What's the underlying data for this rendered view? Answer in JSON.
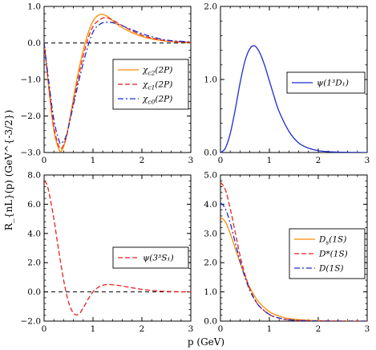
{
  "figure": {
    "ylabel": "R_{nL}(p) (GeV^{-3/2})",
    "xlabel": "p (GeV)"
  },
  "chart_data": [
    {
      "type": "line",
      "panel": "top-left",
      "xlim": [
        0,
        3
      ],
      "ylim": [
        -3.0,
        1.0
      ],
      "xticks": [
        0,
        1,
        2,
        3
      ],
      "xtick_labels": [
        "0",
        "1",
        "2",
        "3"
      ],
      "yticks": [
        -3.0,
        -2.0,
        -1.0,
        0.0,
        1.0
      ],
      "ytick_labels": [
        "−3.0",
        "−2.0",
        "−1.0",
        "0.0",
        "1.0"
      ],
      "zero_line": true,
      "legend_position": "center-right",
      "series": [
        {
          "name": "χc2(2P)",
          "name_main": "χ",
          "name_sub": "c2",
          "name_arg": "(2P)",
          "color": "#ff8c00",
          "dash": "solid",
          "x": [
            0,
            0.1,
            0.2,
            0.3,
            0.36,
            0.45,
            0.55,
            0.7,
            0.85,
            1.0,
            1.15,
            1.3,
            1.5,
            1.8,
            2.1,
            2.5,
            3.0
          ],
          "y": [
            0,
            -1.3,
            -2.4,
            -2.9,
            -2.95,
            -2.6,
            -1.9,
            -0.8,
            0.05,
            0.6,
            0.78,
            0.72,
            0.5,
            0.28,
            0.14,
            0.05,
            0.01
          ]
        },
        {
          "name": "χc1(2P)",
          "name_main": "χ",
          "name_sub": "c1",
          "name_arg": "(2P)",
          "color": "#e8211e",
          "dash": "6,3",
          "x": [
            0,
            0.1,
            0.2,
            0.3,
            0.36,
            0.45,
            0.55,
            0.7,
            0.85,
            1.0,
            1.2,
            1.35,
            1.5,
            1.8,
            2.1,
            2.5,
            3.0
          ],
          "y": [
            0,
            -1.2,
            -2.3,
            -2.82,
            -2.88,
            -2.6,
            -1.95,
            -0.95,
            -0.1,
            0.45,
            0.68,
            0.66,
            0.55,
            0.33,
            0.17,
            0.06,
            0.02
          ]
        },
        {
          "name": "χc0(2P)",
          "name_main": "χ",
          "name_sub": "c0",
          "name_arg": "(2P)",
          "color": "#1f2ccc",
          "dash": "7,3,2,3",
          "x": [
            0,
            0.1,
            0.2,
            0.3,
            0.35,
            0.45,
            0.55,
            0.7,
            0.85,
            1.0,
            1.15,
            1.3,
            1.5,
            1.8,
            2.1,
            2.5,
            3.0
          ],
          "y": [
            0,
            -1.1,
            -2.1,
            -2.65,
            -2.75,
            -2.55,
            -2.0,
            -1.1,
            -0.3,
            0.3,
            0.52,
            0.57,
            0.52,
            0.36,
            0.21,
            0.08,
            0.03
          ]
        }
      ]
    },
    {
      "type": "line",
      "panel": "top-right",
      "xlim": [
        0,
        3
      ],
      "ylim": [
        0,
        2.0
      ],
      "xticks": [
        0,
        1,
        2,
        3
      ],
      "xtick_labels": [
        "0",
        "1",
        "2",
        "3"
      ],
      "yticks": [
        0,
        1.0,
        2.0
      ],
      "ytick_labels": [
        "0.0",
        "1.0",
        "2.0"
      ],
      "zero_line": false,
      "legend_position": "center-right",
      "series": [
        {
          "name": "ψ(1³D1)",
          "name_main": "ψ",
          "name_sub": "",
          "name_arg": "(1³D₁)",
          "color": "#1f2ccc",
          "dash": "solid",
          "x": [
            0,
            0.1,
            0.2,
            0.3,
            0.4,
            0.5,
            0.6,
            0.7,
            0.8,
            0.9,
            1.0,
            1.1,
            1.2,
            1.4,
            1.6,
            1.8,
            2.0,
            2.3,
            2.6,
            3.0
          ],
          "y": [
            0,
            0.06,
            0.26,
            0.58,
            0.95,
            1.25,
            1.42,
            1.46,
            1.37,
            1.2,
            0.98,
            0.76,
            0.56,
            0.29,
            0.13,
            0.06,
            0.025,
            0.008,
            0.002,
            0.0
          ]
        }
      ]
    },
    {
      "type": "line",
      "panel": "bottom-left",
      "xlim": [
        0,
        3
      ],
      "ylim": [
        -2.0,
        8.0
      ],
      "xticks": [
        0,
        1,
        2,
        3
      ],
      "xtick_labels": [
        "0",
        "1",
        "2",
        "3"
      ],
      "yticks": [
        -2.0,
        0.0,
        2.0,
        4.0,
        6.0,
        8.0
      ],
      "ytick_labels": [
        "−2.0",
        "0.0",
        "2.0",
        "4.0",
        "6.0",
        "8.0"
      ],
      "zero_line": true,
      "legend_position": "center-right",
      "series": [
        {
          "name": "ψ(3³S1)",
          "name_main": "ψ",
          "name_sub": "",
          "name_arg": "(3³S₁)",
          "color": "#e8211e",
          "dash": "6,3",
          "x": [
            0,
            0.05,
            0.1,
            0.2,
            0.3,
            0.4,
            0.5,
            0.6,
            0.7,
            0.8,
            0.9,
            1.0,
            1.1,
            1.2,
            1.3,
            1.45,
            1.6,
            1.8,
            2.0,
            2.3,
            2.6,
            3.0
          ],
          "y": [
            7.6,
            7.4,
            6.8,
            5.0,
            2.8,
            0.8,
            -0.7,
            -1.45,
            -1.55,
            -1.1,
            -0.5,
            0.0,
            0.3,
            0.45,
            0.5,
            0.47,
            0.4,
            0.28,
            0.17,
            0.07,
            0.02,
            0.0
          ]
        }
      ]
    },
    {
      "type": "line",
      "panel": "bottom-right",
      "xlim": [
        0,
        3
      ],
      "ylim": [
        0,
        5.0
      ],
      "xticks": [
        0,
        1,
        2,
        3
      ],
      "xtick_labels": [
        "0",
        "1",
        "2",
        "3"
      ],
      "yticks": [
        0,
        1.0,
        2.0,
        3.0,
        4.0,
        5.0
      ],
      "ytick_labels": [
        "0.0",
        "1.0",
        "2.0",
        "3.0",
        "4.0",
        "5.0"
      ],
      "zero_line": false,
      "legend_position": "center-right",
      "series": [
        {
          "name": "Ds(1S)",
          "name_main": "D",
          "name_sub": "s",
          "name_arg": "(1S)",
          "color": "#ff8c00",
          "dash": "solid",
          "x": [
            0,
            0.1,
            0.2,
            0.3,
            0.4,
            0.5,
            0.6,
            0.7,
            0.8,
            1.0,
            1.2,
            1.4,
            1.6,
            1.8,
            2.0,
            2.3,
            2.6,
            3.0
          ],
          "y": [
            3.55,
            3.4,
            3.0,
            2.5,
            2.0,
            1.55,
            1.15,
            0.85,
            0.62,
            0.32,
            0.17,
            0.09,
            0.05,
            0.03,
            0.016,
            0.007,
            0.003,
            0.0
          ]
        },
        {
          "name": "D*(1S)",
          "name_main": "D",
          "name_sub": "",
          "name_arg": "*(1S)",
          "color": "#e8211e",
          "dash": "6,3",
          "x": [
            0,
            0.1,
            0.2,
            0.3,
            0.4,
            0.5,
            0.6,
            0.7,
            0.8,
            1.0,
            1.2,
            1.4,
            1.6,
            1.8,
            2.0,
            2.3,
            2.6,
            3.0
          ],
          "y": [
            4.75,
            4.5,
            3.85,
            3.05,
            2.25,
            1.6,
            1.1,
            0.75,
            0.5,
            0.22,
            0.1,
            0.045,
            0.02,
            0.009,
            0.004,
            0.001,
            0.0,
            0.0
          ]
        },
        {
          "name": "D(1S)",
          "name_main": "D",
          "name_sub": "",
          "name_arg": "(1S)",
          "color": "#1f2ccc",
          "dash": "7,3,2,3",
          "x": [
            0,
            0.1,
            0.2,
            0.3,
            0.4,
            0.5,
            0.6,
            0.7,
            0.8,
            1.0,
            1.2,
            1.4,
            1.6,
            1.8,
            2.0,
            2.3,
            2.6,
            3.0
          ],
          "y": [
            4.05,
            3.85,
            3.35,
            2.7,
            2.05,
            1.5,
            1.05,
            0.73,
            0.5,
            0.23,
            0.105,
            0.05,
            0.023,
            0.011,
            0.005,
            0.002,
            0.0,
            0.0
          ]
        }
      ]
    }
  ]
}
